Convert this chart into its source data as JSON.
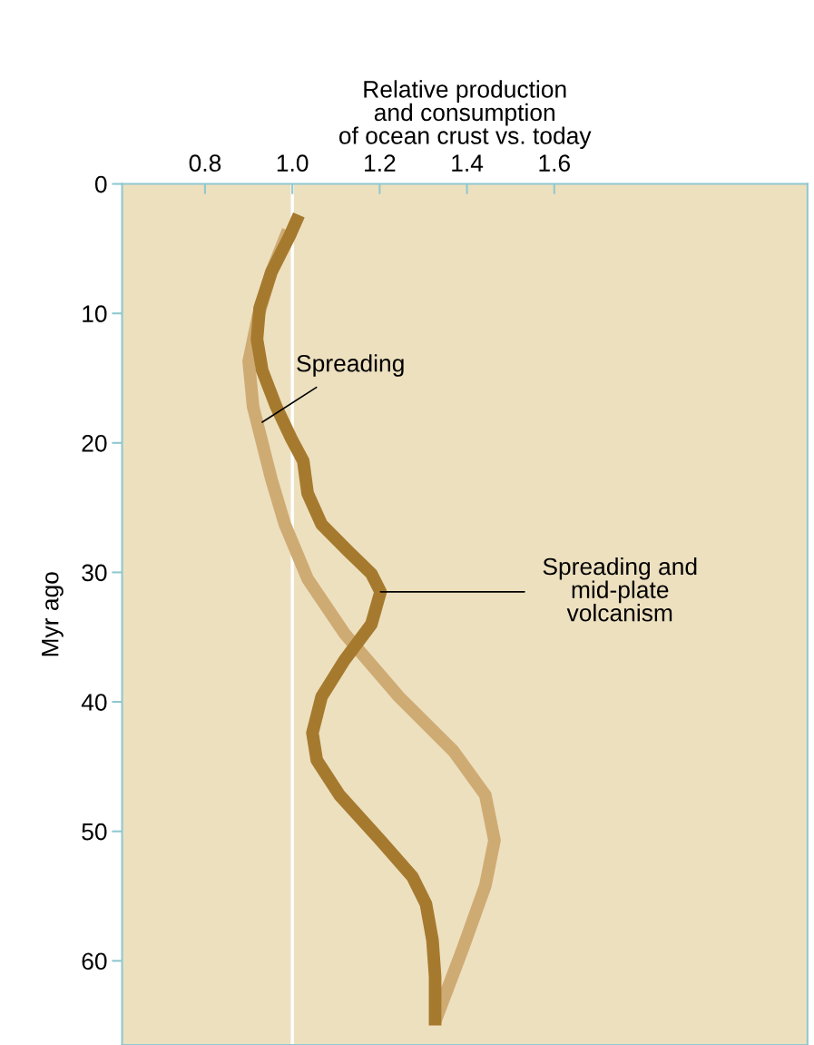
{
  "chart_data": {
    "type": "line",
    "xlabel": "Relative production\nand consumption\nof ocean crust vs. today",
    "ylabel": "Myr ago",
    "xlim": [
      0.61,
      2.18
    ],
    "xticks": [
      {
        "value": 0.8,
        "label": "0.8"
      },
      {
        "value": 1,
        "label": "1.0"
      },
      {
        "value": 1.2,
        "label": "1.2"
      },
      {
        "value": 1.4,
        "label": "1.4"
      },
      {
        "value": 1.6,
        "label": "1.6"
      }
    ],
    "ylim": [
      66.5,
      0
    ],
    "yticks": [
      0,
      10,
      20,
      30,
      40,
      50,
      60
    ],
    "grid": false,
    "legend": false,
    "marker": "none",
    "line_style": "solid",
    "ref_lines": [
      {
        "axis": "x",
        "value": 1.0,
        "color": "#ffffff"
      }
    ],
    "series": [
      {
        "color": "#cfab74",
        "x": [
          0.99,
          0.952,
          0.921,
          0.9,
          0.91,
          0.931,
          0.952,
          0.983,
          1.035,
          1.119,
          1.244,
          1.369,
          1.442,
          1.463,
          1.442,
          1.39,
          1.327
        ],
        "values": [
          3.6,
          6.8,
          10.3,
          13.7,
          17.2,
          20.0,
          22.8,
          26.3,
          30.5,
          34.7,
          39.6,
          43.8,
          47.2,
          50.7,
          54.2,
          59.1,
          64.7
        ]
      },
      {
        "color": "#a67a2e",
        "x": [
          1.015,
          0.994,
          0.952,
          0.925,
          0.919,
          0.931,
          0.963,
          0.998,
          1.025,
          1.035,
          1.067,
          1.129,
          1.181,
          1.202,
          1.181,
          1.119,
          1.067,
          1.046,
          1.056,
          1.108,
          1.202,
          1.275,
          1.306,
          1.321,
          1.327,
          1.327
        ],
        "values": [
          2.4,
          4.0,
          6.8,
          9.6,
          12.0,
          14.4,
          17.2,
          19.7,
          21.4,
          23.9,
          26.3,
          28.4,
          30.1,
          31.5,
          34.0,
          36.8,
          39.6,
          42.4,
          44.5,
          47.2,
          50.7,
          53.5,
          55.6,
          58.4,
          61.2,
          65.0
        ]
      }
    ],
    "annotations": [
      {
        "text": "Spreading",
        "x": 0.931,
        "y": 18.4
      },
      {
        "text": "Spreading and\nmid-plate\nvolcanism",
        "x": 1.202,
        "y": 31.5
      }
    ]
  }
}
